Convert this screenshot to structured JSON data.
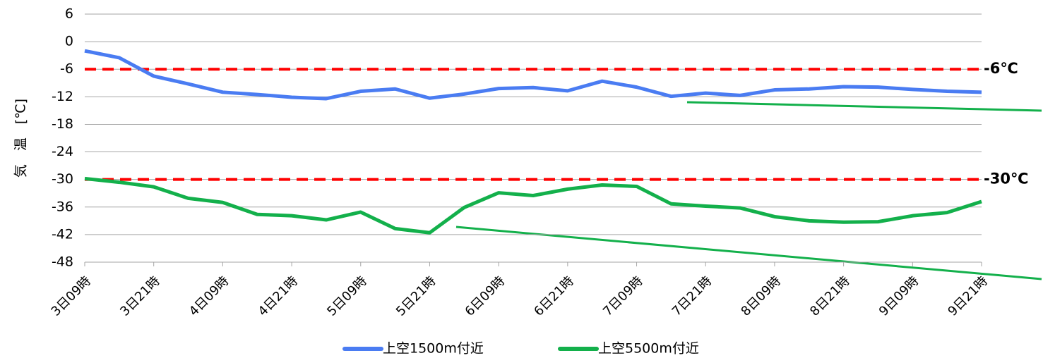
{
  "chart_data": {
    "type": "line",
    "y_label": "気　温　[℃]",
    "categories": [
      "3日09時",
      null,
      "3日21時",
      null,
      "4日09時",
      null,
      "4日21時",
      null,
      "5日09時",
      null,
      "5日21時",
      null,
      "6日09時",
      null,
      "6日21時",
      null,
      "7日09時",
      null,
      "7日21時",
      null,
      "8日09時",
      null,
      "8日21時",
      null,
      "9日09時",
      null,
      "9日21時"
    ],
    "series": [
      {
        "name": "上空1500m付近",
        "color": "#4a7cf2",
        "values": [
          -2,
          -3.5,
          -7.5,
          -9.2,
          -11,
          -11.5,
          -12.1,
          -12.4,
          -10.8,
          -10.3,
          -12.3,
          -11.4,
          -10.2,
          -10,
          -10.7,
          -8.6,
          -9.9,
          -11.9,
          -11.2,
          -11.7,
          -10.5,
          -10.3,
          -9.8,
          -9.9,
          -10.4,
          -10.8,
          -11
        ]
      },
      {
        "name": "上空5500m付近",
        "color": "#13b04b",
        "values": [
          -29.8,
          -30.6,
          -31.6,
          -34.1,
          -35,
          -37.6,
          -37.9,
          -38.8,
          -37.1,
          -40.7,
          -41.6,
          -36.1,
          -32.9,
          -33.5,
          -32.1,
          -31.2,
          -31.5,
          -35.3,
          -35.8,
          -36.2,
          -38.1,
          -39,
          -39.3,
          -39.2,
          -37.9,
          -37.2,
          -34.8
        ]
      }
    ],
    "reference_lines": [
      {
        "value": -6,
        "label": "-6℃",
        "color": "#ff0000"
      },
      {
        "value": -30,
        "label": "-30℃",
        "color": "#ff0000"
      }
    ],
    "ylim": [
      -48,
      6
    ],
    "yticks": [
      -48,
      -42,
      -36,
      -30,
      -24,
      -18,
      -12,
      -6,
      0,
      6
    ],
    "grid": true,
    "legend": "bottom"
  }
}
